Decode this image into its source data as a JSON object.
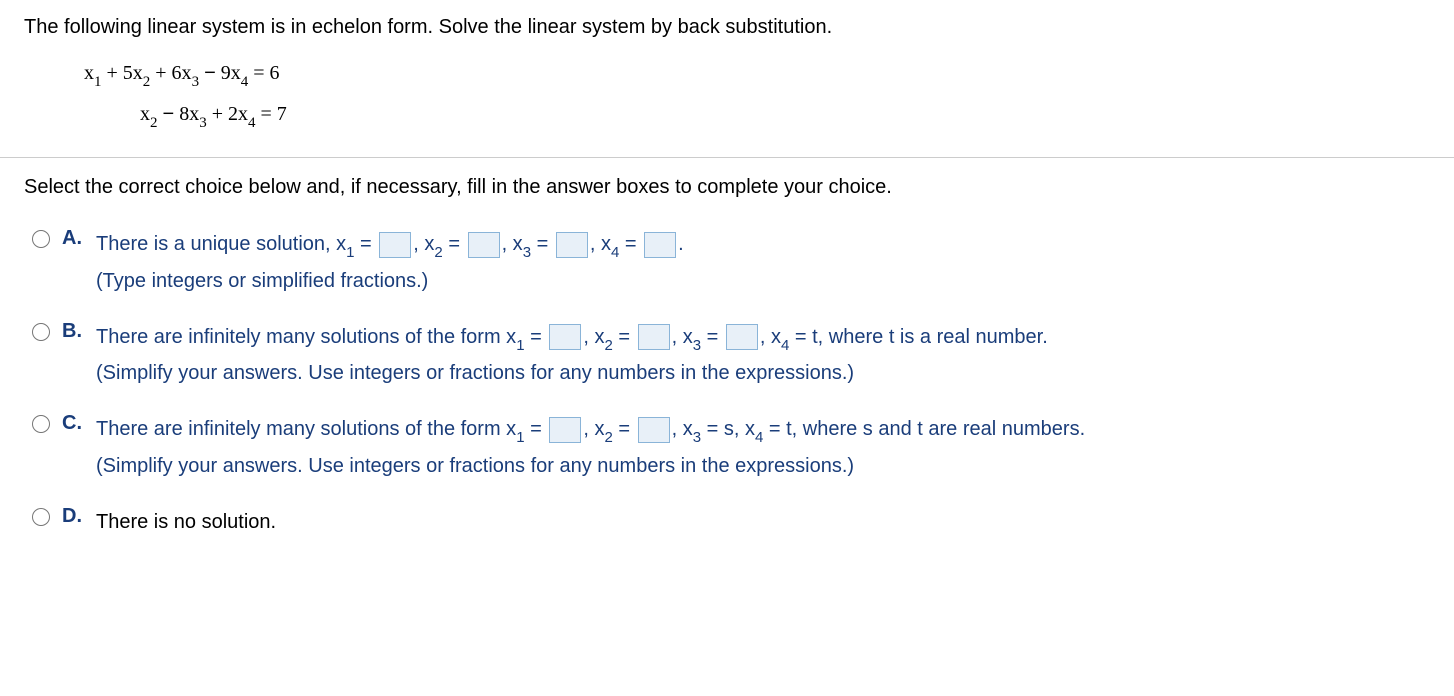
{
  "problem_statement": "The following linear system is in echelon form. Solve the linear system by back substitution.",
  "equations": {
    "eq1": "x₁ + 5x₂ + 6x₃ − 9x₄ = 6",
    "eq2": "x₂ − 8x₃ + 2x₄ = 7"
  },
  "instruction": "Select the correct choice below and, if necessary, fill in the answer boxes to complete your choice.",
  "choices": {
    "A": {
      "letter": "A.",
      "text_1": "There is a unique solution,  x",
      "text_2": " = ",
      "text_3": ", x",
      "text_4": " = ",
      "text_5": ",  x",
      "text_6": " = ",
      "text_7": ", x",
      "text_8": " = ",
      "text_end": ".",
      "hint": "(Type integers or simplified fractions.)"
    },
    "B": {
      "letter": "B.",
      "text_1": "There are infinitely many solutions of the form x",
      "text_2": " = ",
      "text_3": ", x",
      "text_4": " = ",
      "text_5": ", x",
      "text_6": " = ",
      "text_7": ", x",
      "text_8": " = t, where t is a real number.",
      "hint": "(Simplify your answers. Use integers or fractions for any numbers in the expressions.)"
    },
    "C": {
      "letter": "C.",
      "text_1": "There are infinitely many solutions of the form x",
      "text_2": " = ",
      "text_3": ", x",
      "text_4": " = ",
      "text_5": ", x",
      "text_6": " = s, x",
      "text_7": " = t, where s and t are real numbers.",
      "hint": "(Simplify your answers. Use integers or fractions for any numbers in the expressions.)"
    },
    "D": {
      "letter": "D.",
      "text": "There is no solution."
    }
  }
}
